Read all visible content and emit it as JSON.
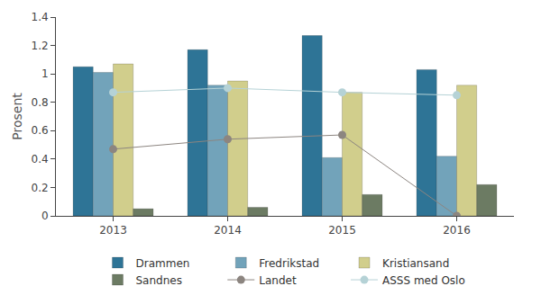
{
  "chart_data": {
    "type": "bar",
    "ylabel": "Prosent",
    "categories": [
      "2013",
      "2014",
      "2015",
      "2016"
    ],
    "series": [
      {
        "name": "Drammen",
        "type": "bar",
        "color": "#2e7496",
        "values": [
          1.05,
          1.17,
          1.27,
          1.03
        ]
      },
      {
        "name": "Fredrikstad",
        "type": "bar",
        "color": "#72a3ba",
        "values": [
          1.01,
          0.92,
          0.41,
          0.42
        ]
      },
      {
        "name": "Kristiansand",
        "type": "bar",
        "color": "#d1ce8c",
        "values": [
          1.07,
          0.95,
          0.87,
          0.92
        ]
      },
      {
        "name": "Sandnes",
        "type": "bar",
        "color": "#6c7b63",
        "values": [
          0.05,
          0.06,
          0.15,
          0.22
        ]
      },
      {
        "name": "Landet",
        "type": "line",
        "marker": "circle",
        "color": "#8c8580",
        "values": [
          0.47,
          0.54,
          0.57,
          0.0
        ]
      },
      {
        "name": "ASSS med Oslo",
        "type": "line",
        "marker": "circle",
        "color": "#b5d2d6",
        "values": [
          0.87,
          0.9,
          0.87,
          0.85
        ]
      }
    ],
    "ylim": [
      0,
      1.4
    ],
    "yticks": [
      0,
      0.2,
      0.4,
      0.6,
      0.8,
      1,
      1.2,
      1.4
    ],
    "grid": false,
    "legend": "bottom"
  }
}
